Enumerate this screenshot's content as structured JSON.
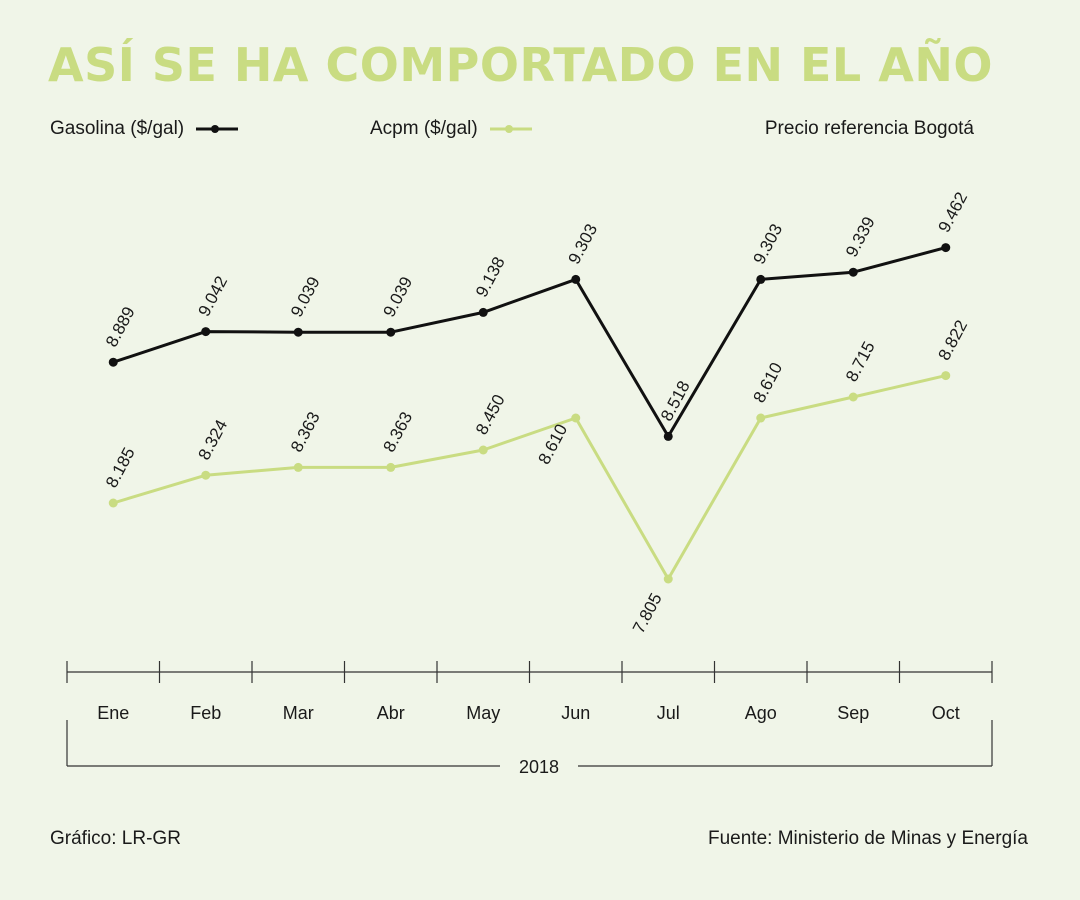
{
  "header": {
    "title": "ASÍ SE HA COMPORTADO EN EL AÑO"
  },
  "legend": {
    "gasolina_label": "Gasolina ($/gal)",
    "acpm_label": "Acpm ($/gal)",
    "note": "Precio referencia Bogotá"
  },
  "footer": {
    "credit": "Gráfico: LR-GR",
    "source": "Fuente: Ministerio de Minas y Energía"
  },
  "colors": {
    "gasolina": "#111111",
    "acpm": "#c9dc82",
    "background": "#f0f5e8"
  },
  "chart_data": {
    "type": "line",
    "title": "ASÍ SE HA COMPORTADO EN EL AÑO",
    "categories": [
      "Ene",
      "Feb",
      "Mar",
      "Abr",
      "May",
      "Jun",
      "Jul",
      "Ago",
      "Sep",
      "Oct"
    ],
    "year_label": "2018",
    "ylim": [
      7500,
      9600
    ],
    "series": [
      {
        "name": "Gasolina ($/gal)",
        "color": "#111111",
        "values": [
          8889,
          9042,
          9039,
          9039,
          9138,
          9303,
          8518,
          9303,
          9339,
          9462
        ],
        "labels": [
          "8.889",
          "9.042",
          "9.039",
          "9.039",
          "9.138",
          "9.303",
          "8.518",
          "9.303",
          "9.339",
          "9.462"
        ]
      },
      {
        "name": "Acpm ($/gal)",
        "color": "#c9dc82",
        "values": [
          8185,
          8324,
          8363,
          8363,
          8450,
          8610,
          7805,
          8610,
          8715,
          8822
        ],
        "labels": [
          "8.185",
          "8.324",
          "8.363",
          "8.363",
          "8.450",
          "8.610",
          "7.805",
          "8.610",
          "8.715",
          "8.822"
        ]
      }
    ]
  }
}
